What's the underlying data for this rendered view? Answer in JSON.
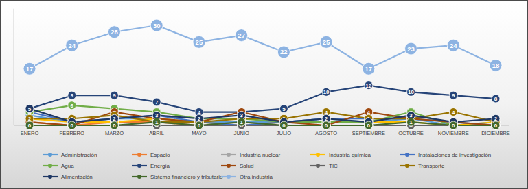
{
  "chart_data": {
    "type": "line",
    "categories": [
      "ENERO",
      "FEBRERO",
      "MARZO",
      "ABRIL",
      "MAYO",
      "JUNIO",
      "JULIO",
      "AGOSTO",
      "SEPTIEMBRE",
      "OCTUBRE",
      "NOVIEMBRE",
      "DICIEMBRE"
    ],
    "ylim": [
      0,
      35
    ],
    "yticks": [
      0
    ],
    "tick_labels": "x",
    "grid": false,
    "legend": "bottom",
    "data_labels": true,
    "marker": "circle",
    "series": [
      {
        "name": "Administración",
        "color": "#5b9bd5",
        "values": [
          3,
          1,
          2,
          2,
          1,
          1,
          1,
          2,
          1,
          2,
          0,
          1
        ]
      },
      {
        "name": "Espacio",
        "color": "#ed7d31",
        "values": [
          1,
          0,
          1,
          1,
          0,
          0,
          0,
          0,
          0,
          0,
          0,
          0
        ]
      },
      {
        "name": "Industria nuclear",
        "color": "#a5a5a5",
        "values": [
          0,
          0,
          0,
          0,
          0,
          0,
          0,
          0,
          0,
          0,
          0,
          0
        ]
      },
      {
        "name": "Industria química",
        "color": "#ffc000",
        "values": [
          2,
          1,
          1,
          2,
          1,
          0,
          1,
          1,
          1,
          1,
          0,
          1
        ]
      },
      {
        "name": "Instalaciones de investigación",
        "color": "#4472c4",
        "values": [
          4,
          1,
          2,
          3,
          1,
          0,
          1,
          2,
          2,
          2,
          1,
          0
        ]
      },
      {
        "name": "Agua",
        "color": "#70ad47",
        "values": [
          4,
          6,
          5,
          4,
          2,
          2,
          1,
          1,
          1,
          4,
          0,
          0
        ]
      },
      {
        "name": "Energía",
        "color": "#264478",
        "values": [
          5,
          9,
          9,
          7,
          4,
          4,
          5,
          10,
          12,
          10,
          9,
          8
        ]
      },
      {
        "name": "Salud",
        "color": "#9e480e",
        "values": [
          1,
          0,
          4,
          2,
          1,
          4,
          1,
          0,
          4,
          2,
          1,
          0
        ]
      },
      {
        "name": "TIC",
        "color": "#636363",
        "values": [
          0,
          0,
          0,
          0,
          0,
          0,
          0,
          0,
          0,
          0,
          0,
          0
        ]
      },
      {
        "name": "Transporte",
        "color": "#997300",
        "values": [
          2,
          2,
          3,
          1,
          1,
          2,
          2,
          4,
          2,
          2,
          4,
          1
        ]
      },
      {
        "name": "Alimentación",
        "color": "#1f3864",
        "values": [
          5,
          1,
          2,
          3,
          2,
          3,
          1,
          2,
          1,
          3,
          1,
          2
        ]
      },
      {
        "name": "Sistema financiero y tributario",
        "color": "#43682b",
        "values": [
          0,
          0,
          0,
          1,
          0,
          1,
          0,
          0,
          0,
          1,
          0,
          0
        ]
      },
      {
        "name": "Otra industria",
        "color": "#8db3e2",
        "values": [
          17,
          24,
          28,
          30,
          25,
          27,
          22,
          25,
          17,
          23,
          24,
          18
        ]
      }
    ]
  }
}
